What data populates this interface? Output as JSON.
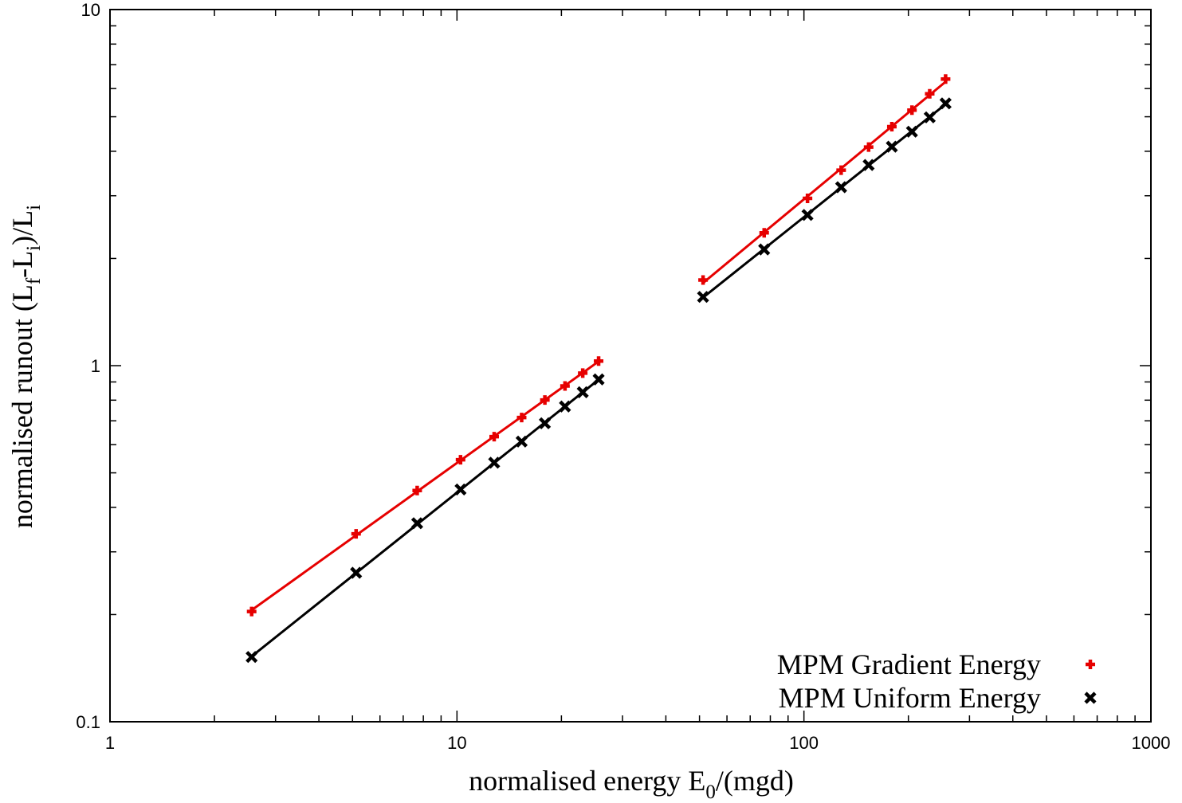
{
  "chart_data": {
    "type": "scatter",
    "xscale": "log",
    "yscale": "log",
    "xlim": [
      1,
      1000
    ],
    "ylim": [
      0.1,
      10
    ],
    "xticks": [
      {
        "value": 1,
        "label": "1"
      },
      {
        "value": 10,
        "label": "10"
      },
      {
        "value": 100,
        "label": "100"
      },
      {
        "value": 1000,
        "label": "1000"
      }
    ],
    "yticks": [
      {
        "value": 0.1,
        "label": "0.1"
      },
      {
        "value": 1,
        "label": "1"
      },
      {
        "value": 10,
        "label": "10"
      }
    ],
    "xlabel": {
      "main": "normalised energy E",
      "sub": "0",
      "tail": "/(mgd)"
    },
    "ylabel": {
      "p1": "normalised runout (L",
      "s1": "f",
      "p2": "-L",
      "s2": "i",
      "p3": ")/L",
      "s3": "i"
    },
    "grid": false,
    "legend_position": "bottom-right",
    "series": [
      {
        "name": "MPM Gradient Energy",
        "color": "#e60000",
        "marker": "plus",
        "groups": [
          {
            "x": [
              2.56,
              5.12,
              7.68,
              10.24,
              12.8,
              15.36,
              17.92,
              20.48,
              23.04,
              25.6
            ],
            "y": [
              0.204,
              0.337,
              0.446,
              0.544,
              0.632,
              0.715,
              0.801,
              0.877,
              0.953,
              1.03
            ]
          },
          {
            "x": [
              51.2,
              76.8,
              102.4,
              128,
              153.6,
              179.2,
              204.8,
              230.4,
              256
            ],
            "y": [
              1.74,
              2.36,
              2.95,
              3.54,
              4.11,
              4.69,
              5.22,
              5.8,
              6.38
            ]
          }
        ]
      },
      {
        "name": "MPM Uniform Energy",
        "color": "#000000",
        "marker": "cross",
        "groups": [
          {
            "x": [
              2.56,
              5.12,
              7.68,
              10.24,
              12.8,
              15.36,
              17.92,
              20.48,
              23.04,
              25.6
            ],
            "y": [
              0.152,
              0.262,
              0.361,
              0.449,
              0.534,
              0.612,
              0.689,
              0.768,
              0.842,
              0.915
            ]
          },
          {
            "x": [
              51.2,
              76.8,
              102.4,
              128,
              153.6,
              179.2,
              204.8,
              230.4,
              256
            ],
            "y": [
              1.56,
              2.12,
              2.65,
              3.17,
              3.66,
              4.12,
              4.54,
              4.98,
              5.45
            ]
          }
        ]
      }
    ]
  }
}
